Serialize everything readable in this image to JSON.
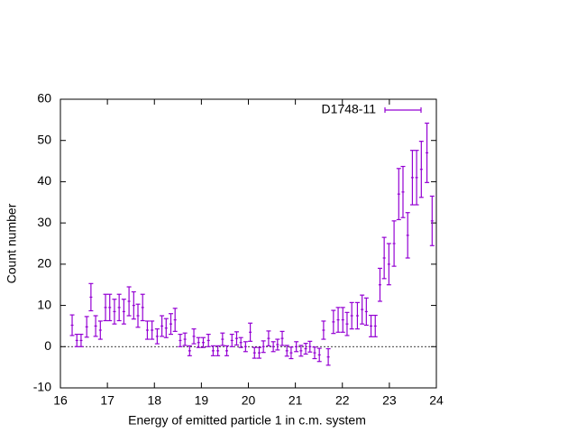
{
  "chart_data": {
    "type": "errorbar",
    "xlabel": "Energy of emitted particle 1 in c.m. system",
    "ylabel": "Count number",
    "xlim": [
      16,
      24
    ],
    "xticks": [
      16,
      17,
      18,
      19,
      20,
      21,
      22,
      23,
      24
    ],
    "ylim": [
      -10,
      60
    ],
    "yticks": [
      -10,
      0,
      10,
      20,
      30,
      40,
      50,
      60
    ],
    "zero_line": true,
    "legend": "top-right",
    "series": [
      {
        "name": "D1748-11",
        "color": "#9400d3",
        "x": [
          16.25,
          16.35,
          16.44,
          16.56,
          16.65,
          16.75,
          16.85,
          16.96,
          17.05,
          17.15,
          17.25,
          17.35,
          17.46,
          17.56,
          17.65,
          17.75,
          17.85,
          17.95,
          18.06,
          18.16,
          18.25,
          18.35,
          18.44,
          18.55,
          18.65,
          18.75,
          18.84,
          18.94,
          19.04,
          19.15,
          19.25,
          19.35,
          19.45,
          19.54,
          19.65,
          19.75,
          19.84,
          19.94,
          20.04,
          20.13,
          20.23,
          20.32,
          20.43,
          20.53,
          20.62,
          20.72,
          20.82,
          20.91,
          21.02,
          21.12,
          21.22,
          21.31,
          21.41,
          21.51,
          21.6,
          21.7,
          21.81,
          21.91,
          22.01,
          22.1,
          22.2,
          22.32,
          22.42,
          22.51,
          22.61,
          22.7,
          22.8,
          22.89,
          22.99,
          23.1,
          23.2,
          23.29,
          23.39,
          23.49,
          23.58,
          23.68,
          23.8,
          23.91
        ],
        "values": [
          5.2,
          1.5,
          1.5,
          4.8,
          12,
          5,
          4,
          9.5,
          9.5,
          8.5,
          9.5,
          8.5,
          11,
          10,
          7.5,
          9.5,
          4,
          4,
          2.5,
          5,
          4.5,
          5.5,
          6.5,
          1.5,
          1.8,
          -1,
          2.5,
          1,
          1,
          1.5,
          -1,
          -1,
          1.8,
          -1,
          1.5,
          2,
          1,
          0,
          3.5,
          -1.5,
          -1.5,
          0,
          2,
          0,
          0.5,
          2,
          -1,
          -1.5,
          0,
          -1,
          -0.5,
          0,
          -1.5,
          -2,
          4,
          -2.5,
          6,
          6.5,
          6.5,
          5.5,
          7.5,
          7.5,
          9,
          8.5,
          5,
          5,
          15,
          21.5,
          20,
          25,
          37,
          37.5,
          27,
          41,
          41,
          43,
          47,
          30.5
        ],
        "errors": [
          2.5,
          1.5,
          1.5,
          2.5,
          3.3,
          2.5,
          2.2,
          3.2,
          3.2,
          3,
          3.2,
          3,
          3.5,
          3.3,
          2.8,
          3.2,
          2.2,
          2.2,
          1.8,
          2.5,
          2.3,
          2.5,
          2.8,
          1.5,
          1.5,
          1.2,
          1.8,
          1.2,
          1.2,
          1.5,
          1.2,
          1.2,
          1.5,
          1.2,
          1.5,
          1.6,
          1.2,
          1.2,
          2.2,
          1.3,
          1.3,
          1.4,
          1.8,
          1.2,
          1.3,
          1.7,
          1.3,
          1.4,
          1.2,
          1.3,
          1.3,
          1.3,
          1.4,
          1.6,
          2.2,
          2,
          2.8,
          3,
          3,
          2.8,
          3.2,
          3.2,
          3.5,
          3.3,
          2.6,
          2.6,
          4,
          5,
          5,
          5.5,
          6.2,
          6.2,
          5.5,
          6.6,
          6.6,
          6.8,
          7.2,
          6
        ]
      }
    ]
  }
}
